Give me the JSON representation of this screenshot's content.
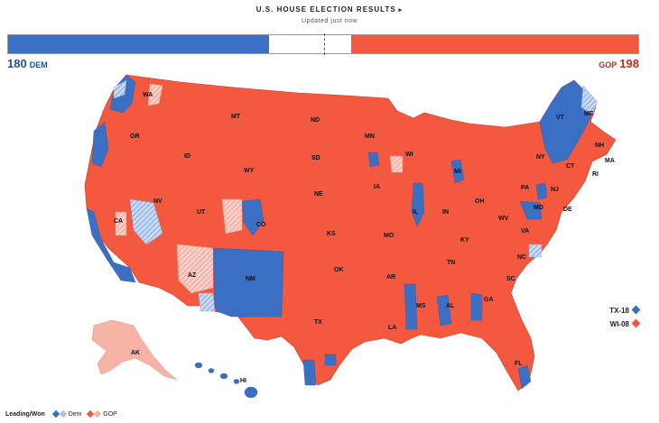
{
  "header": {
    "title": "U.S. HOUSE ELECTION RESULTS",
    "updated": "Updated just now"
  },
  "tally": {
    "dem": {
      "seats": "180",
      "label": "DEM"
    },
    "gop": {
      "label": "GOP",
      "seats": "198"
    },
    "total_seats": 435
  },
  "colors": {
    "dem": "#3a6fc4",
    "dem_light": "#a9c3ea",
    "gop": "#f4583f",
    "gop_light": "#f6b3a6"
  },
  "states": [
    "WA",
    "OR",
    "CA",
    "NV",
    "ID",
    "MT",
    "WY",
    "UT",
    "AZ",
    "CO",
    "NM",
    "ND",
    "SD",
    "NE",
    "KS",
    "OK",
    "TX",
    "MN",
    "IA",
    "MO",
    "AR",
    "LA",
    "WI",
    "IL",
    "MS",
    "MI",
    "IN",
    "KY",
    "TN",
    "AL",
    "OH",
    "GA",
    "FL",
    "SC",
    "NC",
    "VA",
    "WV",
    "PA",
    "NY",
    "VT",
    "NH",
    "ME",
    "MA",
    "RI",
    "CT",
    "NJ",
    "DE",
    "MD",
    "AK",
    "HI"
  ],
  "races": [
    {
      "name": "TX-18",
      "party": "dem",
      "color": "#3a6fc4"
    },
    {
      "name": "WI-08",
      "party": "gop",
      "color": "#f4583f"
    }
  ],
  "legend": {
    "heading": "Leading/Won",
    "dem": "Dem",
    "gop": "GOP"
  }
}
